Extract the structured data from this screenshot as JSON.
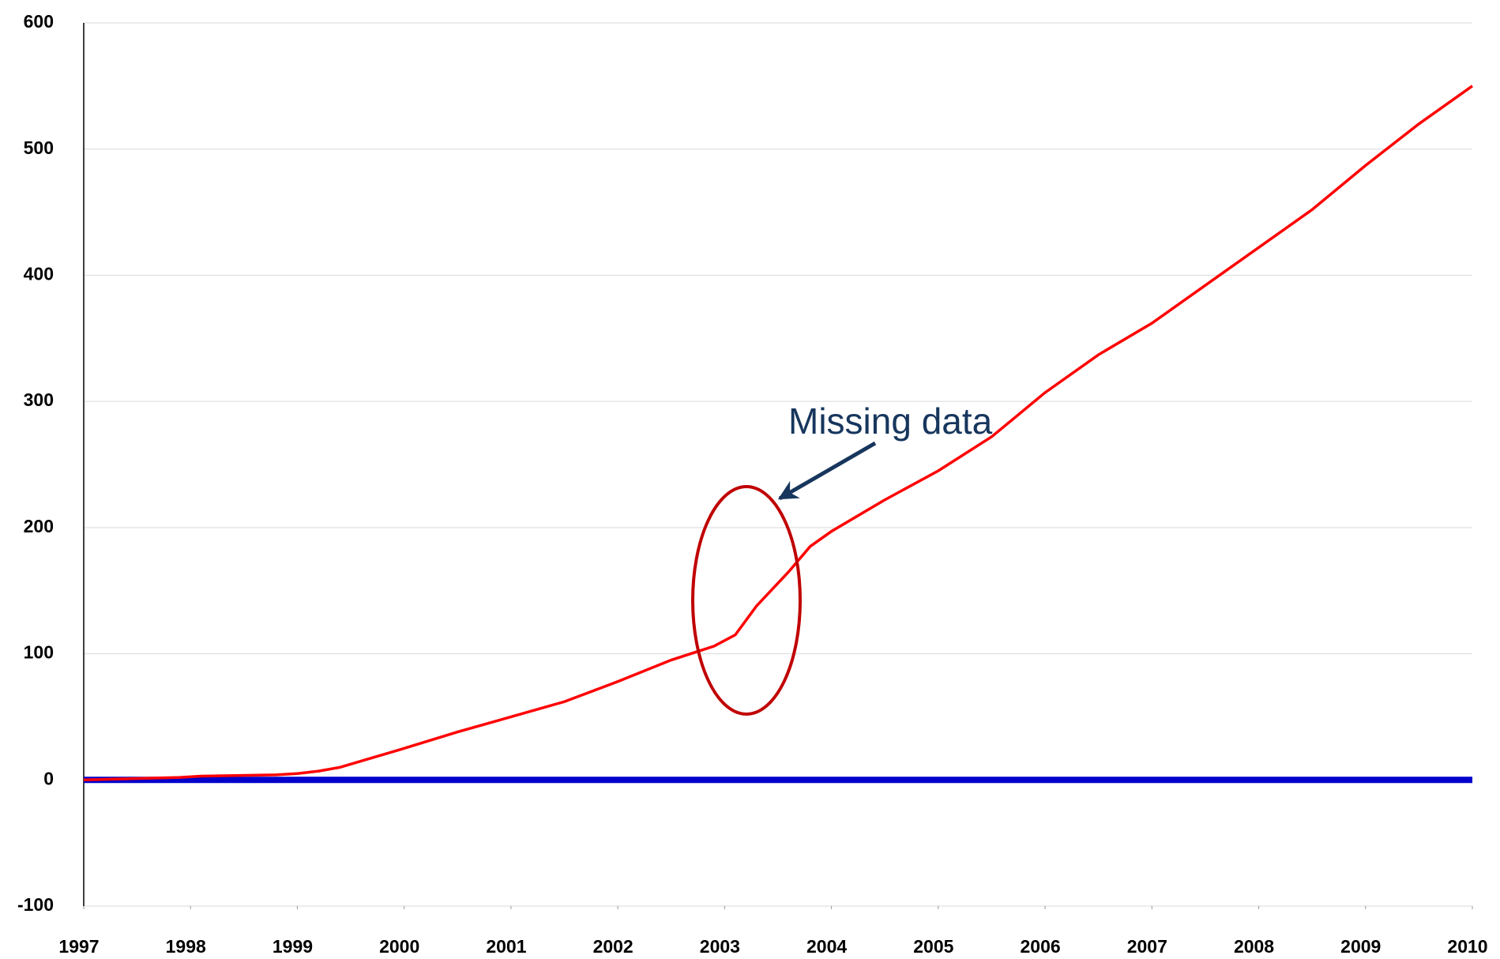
{
  "chart_data": {
    "type": "line",
    "annotation": "Missing data",
    "xlim": [
      1997,
      2010
    ],
    "xticks": [
      1997,
      1998,
      1999,
      2000,
      2001,
      2002,
      2003,
      2004,
      2005,
      2006,
      2007,
      2008,
      2009,
      2010
    ],
    "ylim": [
      -100,
      600
    ],
    "yticks": [
      -100,
      0,
      100,
      200,
      300,
      400,
      500,
      600
    ],
    "grid": true,
    "series": [
      {
        "color": "#ff0000",
        "x": [
          1997.0,
          1997.9,
          1998.1,
          1998.8,
          1999.0,
          1999.2,
          1999.4,
          1999.6,
          2000.0,
          2000.5,
          2001.0,
          2001.5,
          2002.0,
          2002.5,
          2002.9,
          2003.1,
          2003.3,
          2003.6,
          2003.8,
          2004.0,
          2004.5,
          2005.0,
          2005.5,
          2006.0,
          2006.5,
          2007.0,
          2007.5,
          2008.0,
          2008.5,
          2009.0,
          2009.5,
          2010.0
        ],
        "values": [
          0,
          2,
          3,
          4,
          5,
          7,
          10,
          15,
          25,
          38,
          50,
          62,
          78,
          95,
          106,
          115,
          138,
          165,
          185,
          197,
          222,
          245,
          272,
          307,
          337,
          362,
          392,
          422,
          452,
          487,
          520,
          550
        ]
      },
      {
        "color": "#0000cc",
        "x": [
          1997,
          2010
        ],
        "values": [
          0,
          0
        ]
      }
    ]
  }
}
